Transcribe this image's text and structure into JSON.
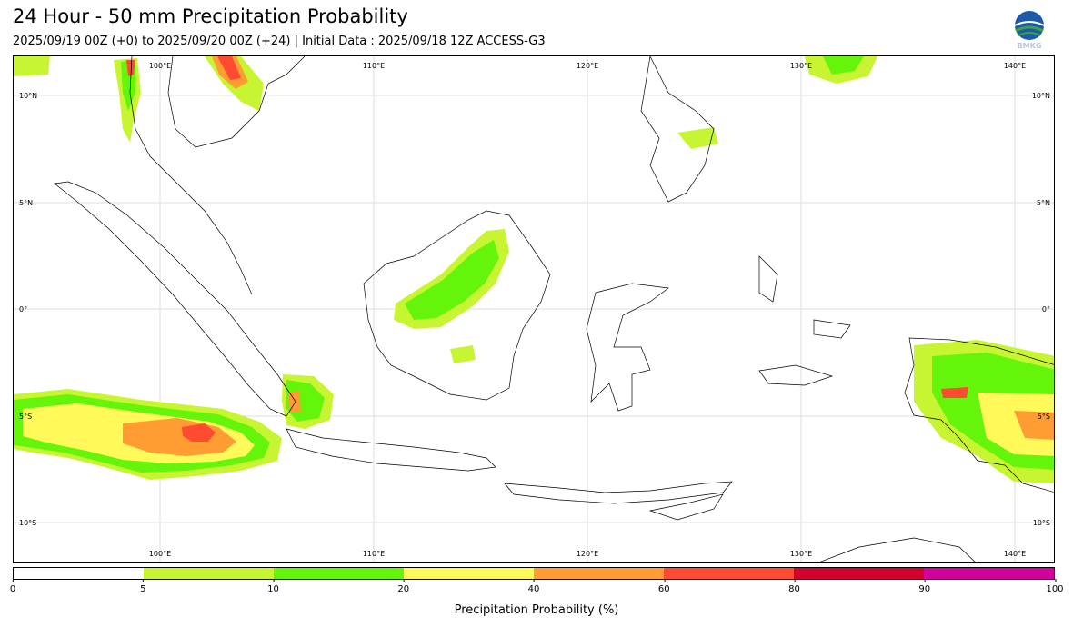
{
  "header": {
    "title": "24 Hour - 50 mm Precipitation Probability",
    "subtitle": "2025/09/19 00Z (+0) to 2025/09/20 00Z (+24) | Initial Data : 2025/09/18 12Z ACCESS-G3",
    "logo_text": "BMKG"
  },
  "map": {
    "lon_labels_top": [
      "100°E",
      "110°E",
      "120°E",
      "130°E",
      "140°E"
    ],
    "lon_labels_bottom": [
      "100°E",
      "110°E",
      "120°E",
      "130°E",
      "140°E"
    ],
    "lat_labels_left": [
      "10°N",
      "5°N",
      "0°",
      "5°S",
      "10°S"
    ],
    "lat_labels_right": [
      "10°N",
      "5°N",
      "0°",
      "5°S",
      "10°S"
    ],
    "colors": {
      "land_outline": "#000000",
      "grid": "#dddddd"
    }
  },
  "colorbar": {
    "tick_labels": [
      "0",
      "5",
      "10",
      "20",
      "40",
      "60",
      "80",
      "90",
      "100"
    ],
    "segments": [
      {
        "from": "0",
        "to": "5",
        "color": "#ffffff"
      },
      {
        "from": "5",
        "to": "10",
        "color": "#c8f532"
      },
      {
        "from": "10",
        "to": "20",
        "color": "#64f50a"
      },
      {
        "from": "20",
        "to": "40",
        "color": "#fffa5a"
      },
      {
        "from": "40",
        "to": "60",
        "color": "#ff9c32"
      },
      {
        "from": "60",
        "to": "80",
        "color": "#ff4b32"
      },
      {
        "from": "80",
        "to": "90",
        "color": "#d2002d"
      },
      {
        "from": "90",
        "to": "100",
        "color": "#d2009c"
      }
    ],
    "label": "Precipitation Probability (%)"
  }
}
